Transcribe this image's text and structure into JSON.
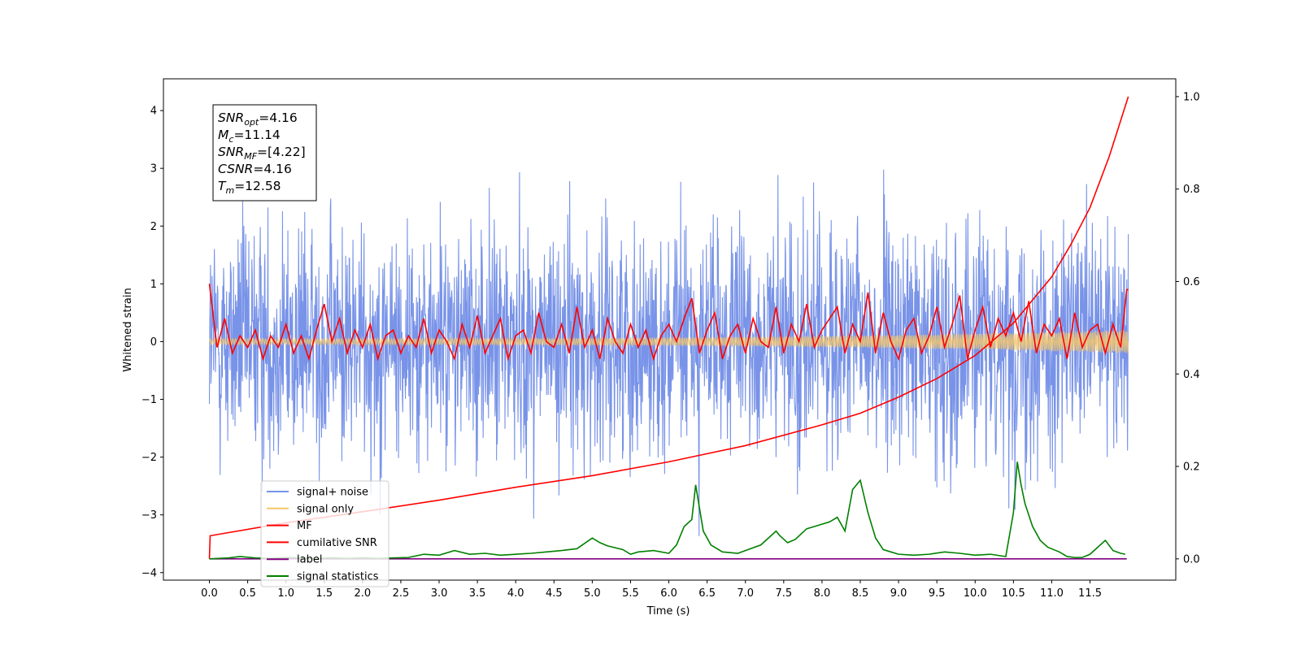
{
  "chart_data": {
    "type": "line",
    "title": "",
    "xlabel": "Time (s)",
    "ylabel": "Whitened strain",
    "xlim": [
      -0.6,
      12.62
    ],
    "ylim": [
      -4.13,
      4.55
    ],
    "y2lim": [
      -0.046,
      1.0385
    ],
    "grid": false,
    "legend_position": "lower-left",
    "x_ticks": [
      "0.0",
      "0.5",
      "1.0",
      "1.5",
      "2.0",
      "2.5",
      "3.0",
      "3.5",
      "4.0",
      "4.5",
      "5.0",
      "5.5",
      "6.0",
      "6.5",
      "7.0",
      "7.5",
      "8.0",
      "8.5",
      "9.0",
      "9.5",
      "10.0",
      "10.5",
      "11.0",
      "11.5"
    ],
    "y_ticks": [
      "4",
      "3",
      "2",
      "1",
      "0",
      "−1",
      "−2",
      "−3",
      "−4"
    ],
    "y2_ticks": [
      "1.0",
      "0.8",
      "0.6",
      "0.4",
      "0.2",
      "0.0"
    ],
    "annotation": [
      {
        "sym": "SNR",
        "sub": "opt",
        "val": "=4.16"
      },
      {
        "sym": "M",
        "sub": "c",
        "val": "=11.14"
      },
      {
        "sym": "SNR",
        "sub": "MF",
        "val": "=[4.22]"
      },
      {
        "sym": "CSNR",
        "sub": "",
        "val": "=4.16"
      },
      {
        "sym": "T",
        "sub": "m",
        "val": "=12.58"
      }
    ],
    "series": [
      {
        "name": "signal+ noise",
        "color": "#7893e8",
        "axis": "left",
        "description": "whitened noisy strain, roughly uniform noise in about -3.5 to 4.2",
        "range": [
          -3.6,
          4.17
        ]
      },
      {
        "name": "signal only",
        "color": "#f5c76b",
        "axis": "left",
        "description": "chirp, amplitude growing to about 0.2 at t=12",
        "range": [
          -0.2,
          0.2
        ]
      },
      {
        "name": "MF",
        "color": "#ff0000",
        "axis": "left",
        "x": [
          0.0,
          0.1,
          0.2,
          0.3,
          0.4,
          0.5,
          0.6,
          0.7,
          0.8,
          0.9,
          1.0,
          1.1,
          1.2,
          1.3,
          1.4,
          1.5,
          1.6,
          1.7,
          1.8,
          1.9,
          2.0,
          2.1,
          2.2,
          2.3,
          2.4,
          2.5,
          2.6,
          2.7,
          2.8,
          2.9,
          3.0,
          3.1,
          3.2,
          3.3,
          3.4,
          3.5,
          3.6,
          3.7,
          3.8,
          3.9,
          4.0,
          4.1,
          4.2,
          4.3,
          4.4,
          4.5,
          4.6,
          4.7,
          4.8,
          4.9,
          5.0,
          5.1,
          5.2,
          5.3,
          5.4,
          5.5,
          5.6,
          5.7,
          5.8,
          5.9,
          6.0,
          6.1,
          6.2,
          6.3,
          6.4,
          6.5,
          6.6,
          6.7,
          6.8,
          6.9,
          7.0,
          7.1,
          7.2,
          7.3,
          7.4,
          7.5,
          7.6,
          7.7,
          7.8,
          7.9,
          8.0,
          8.1,
          8.2,
          8.3,
          8.4,
          8.5,
          8.6,
          8.7,
          8.8,
          8.9,
          9.0,
          9.1,
          9.2,
          9.3,
          9.4,
          9.5,
          9.6,
          9.7,
          9.8,
          9.9,
          10.0,
          10.1,
          10.2,
          10.3,
          10.4,
          10.5,
          10.6,
          10.7,
          10.8,
          10.9,
          11.0,
          11.1,
          11.2,
          11.3,
          11.4,
          11.5,
          11.6,
          11.7,
          11.8,
          11.9,
          11.98,
          12.0
        ],
        "values": [
          1.0,
          -0.1,
          0.4,
          -0.2,
          0.1,
          -0.1,
          0.2,
          -0.3,
          0.1,
          -0.1,
          0.3,
          -0.2,
          0.1,
          -0.3,
          0.2,
          0.65,
          0.0,
          0.4,
          -0.2,
          0.2,
          -0.1,
          0.3,
          -0.3,
          0.1,
          0.2,
          -0.2,
          0.1,
          -0.1,
          0.4,
          -0.2,
          0.2,
          0.0,
          -0.3,
          0.3,
          -0.1,
          0.45,
          -0.2,
          0.1,
          0.4,
          -0.3,
          0.1,
          0.2,
          -0.2,
          0.5,
          0.0,
          -0.1,
          0.3,
          -0.2,
          0.6,
          -0.1,
          0.2,
          -0.3,
          0.4,
          0.0,
          -0.2,
          0.3,
          -0.1,
          0.2,
          -0.3,
          0.1,
          0.3,
          0.0,
          0.4,
          0.75,
          -0.2,
          0.2,
          0.5,
          -0.3,
          0.1,
          0.3,
          -0.2,
          0.4,
          0.0,
          -0.1,
          0.6,
          -0.2,
          0.3,
          0.0,
          0.65,
          -0.1,
          0.2,
          0.4,
          0.6,
          -0.2,
          0.3,
          0.0,
          0.85,
          -0.2,
          0.5,
          0.0,
          -0.3,
          0.2,
          0.4,
          -0.2,
          0.1,
          0.6,
          -0.1,
          0.3,
          0.8,
          -0.3,
          0.2,
          0.6,
          -0.1,
          0.4,
          0.1,
          0.5,
          0.0,
          0.7,
          -0.2,
          0.3,
          0.1,
          0.4,
          -0.3,
          0.5,
          -0.1,
          0.2,
          0.3,
          -0.2,
          0.3,
          -0.1,
          0.9,
          0.9
        ]
      },
      {
        "name": "cumilative SNR",
        "color": "#ff0000",
        "axis": "right",
        "x": [
          0.0,
          0.01,
          1.0,
          2.0,
          3.0,
          4.0,
          5.0,
          6.0,
          7.0,
          8.0,
          8.5,
          9.0,
          9.5,
          10.0,
          10.5,
          11.0,
          11.25,
          11.5,
          11.75,
          12.0
        ],
        "values": [
          0.0,
          0.05,
          0.078,
          0.102,
          0.127,
          0.155,
          0.18,
          0.21,
          0.245,
          0.29,
          0.315,
          0.35,
          0.39,
          0.44,
          0.51,
          0.61,
          0.68,
          0.76,
          0.87,
          1.0
        ]
      },
      {
        "name": "label",
        "color": "#800080",
        "axis": "right",
        "x": [
          0.0,
          11.98
        ],
        "values": [
          0.0,
          0.0
        ]
      },
      {
        "name": "signal statistics",
        "color": "#008000",
        "axis": "right",
        "x": [
          0.0,
          0.25,
          0.4,
          0.6,
          0.8,
          1.0,
          1.2,
          1.4,
          1.6,
          1.8,
          2.0,
          2.2,
          2.4,
          2.6,
          2.8,
          3.0,
          3.2,
          3.4,
          3.6,
          3.8,
          4.0,
          4.2,
          4.4,
          4.6,
          4.8,
          5.0,
          5.1,
          5.2,
          5.4,
          5.5,
          5.6,
          5.8,
          6.0,
          6.1,
          6.2,
          6.3,
          6.35,
          6.45,
          6.55,
          6.7,
          6.9,
          7.0,
          7.2,
          7.3,
          7.4,
          7.45,
          7.55,
          7.65,
          7.8,
          7.9,
          8.0,
          8.1,
          8.2,
          8.3,
          8.4,
          8.5,
          8.6,
          8.7,
          8.8,
          8.9,
          9.0,
          9.2,
          9.4,
          9.6,
          9.8,
          10.0,
          10.2,
          10.4,
          10.5,
          10.55,
          10.6,
          10.65,
          10.75,
          10.85,
          10.95,
          11.1,
          11.2,
          11.3,
          11.4,
          11.5,
          11.6,
          11.7,
          11.8,
          11.9,
          11.96
        ],
        "values": [
          0.0,
          0.002,
          0.005,
          0.002,
          0.001,
          0.003,
          0.002,
          0.001,
          0.002,
          0.001,
          0.002,
          0.001,
          0.002,
          0.003,
          0.01,
          0.008,
          0.018,
          0.01,
          0.012,
          0.008,
          0.01,
          0.012,
          0.015,
          0.018,
          0.022,
          0.045,
          0.035,
          0.028,
          0.02,
          0.01,
          0.015,
          0.018,
          0.012,
          0.03,
          0.07,
          0.085,
          0.16,
          0.06,
          0.03,
          0.015,
          0.012,
          0.018,
          0.03,
          0.045,
          0.06,
          0.05,
          0.035,
          0.042,
          0.065,
          0.07,
          0.075,
          0.08,
          0.09,
          0.06,
          0.15,
          0.17,
          0.1,
          0.045,
          0.02,
          0.015,
          0.01,
          0.008,
          0.01,
          0.015,
          0.012,
          0.008,
          0.01,
          0.005,
          0.1,
          0.21,
          0.16,
          0.12,
          0.07,
          0.04,
          0.025,
          0.015,
          0.005,
          0.003,
          0.003,
          0.01,
          0.025,
          0.04,
          0.018,
          0.012,
          0.01
        ]
      }
    ]
  }
}
